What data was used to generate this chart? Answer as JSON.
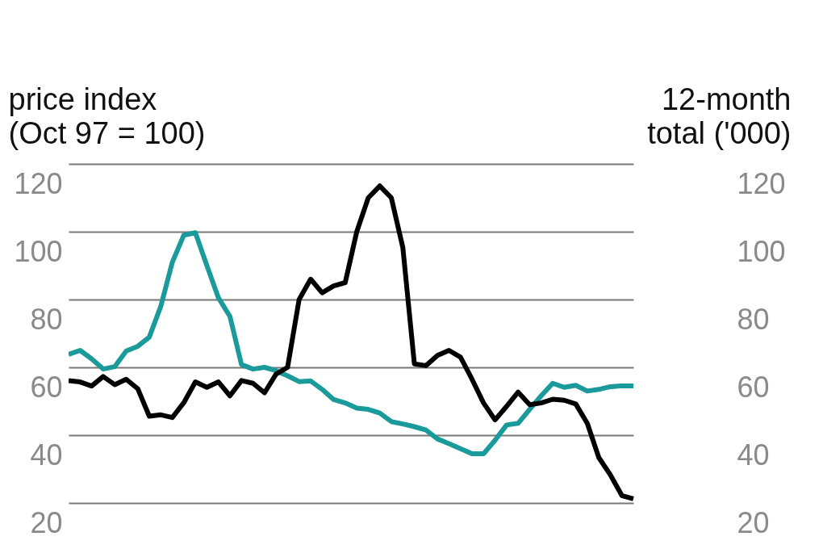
{
  "chart_data": {
    "type": "line",
    "ylabel": "price index\n(Oct 97 = 100)",
    "y2label": "12-month\ntotal ('000)",
    "categories": [
      null,
      null,
      null,
      null,
      null,
      null,
      null,
      null,
      null,
      null,
      null,
      null,
      null,
      null,
      null,
      null,
      null,
      null,
      null,
      null,
      null,
      null,
      null,
      null,
      null,
      null,
      null,
      null,
      null,
      null,
      null,
      null,
      null,
      null,
      null,
      null,
      null,
      null,
      null,
      null,
      null,
      null,
      null,
      null,
      null,
      null,
      null,
      null,
      null,
      null
    ],
    "series": [
      {
        "color": "#1a9a9a",
        "values": [
          63.8,
          65,
          62.5,
          59.5,
          60.2,
          64.8,
          66.2,
          68.9,
          78,
          91,
          99,
          99.7,
          90,
          80.5,
          75,
          60.8,
          59.5,
          60,
          59,
          57.5,
          55.8,
          56,
          53.5,
          50.5,
          49.5,
          48,
          47.6,
          46.5,
          44,
          43.3,
          42.5,
          41.5,
          38.9,
          37.5,
          36,
          34.5,
          34.5,
          38.5,
          43,
          43.5,
          47.6,
          51.6,
          55.3,
          54.1,
          54.7,
          53,
          53.5,
          54.3,
          54.5,
          54.5
        ]
      },
      {
        "color": "#000000",
        "axis": "y2",
        "values": [
          56.1,
          55.7,
          54.5,
          57.3,
          54.9,
          56.5,
          53.7,
          45.6,
          46,
          45.2,
          49.6,
          55.7,
          54.1,
          55.7,
          51.6,
          56.1,
          55.3,
          52.5,
          58,
          60,
          80,
          86,
          82,
          84,
          85,
          100,
          110,
          113.5,
          110,
          95.3,
          61,
          60.5,
          63.5,
          65,
          63,
          56.5,
          49.5,
          44.5,
          48.5,
          52.7,
          49,
          49.5,
          50.6,
          50.3,
          49.2,
          43.5,
          33.4,
          28.3,
          22.2,
          21.2
        ]
      }
    ],
    "ylim": [
      20,
      120
    ],
    "yticks": [
      20,
      40,
      60,
      80,
      100,
      120
    ],
    "y2lim": [
      20,
      120
    ],
    "y2ticks": [
      20,
      40,
      60,
      80,
      100,
      120
    ],
    "grid": "y",
    "tick_labels": "y",
    "line_style": "solid",
    "marker": "none"
  }
}
